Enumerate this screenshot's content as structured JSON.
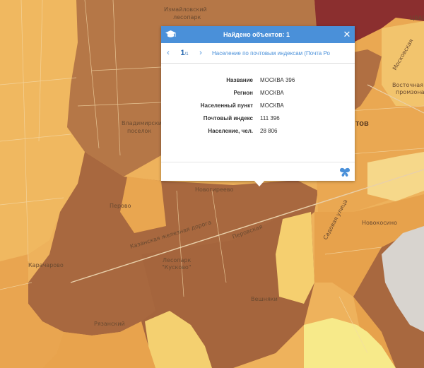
{
  "popup": {
    "title": "Найдено объектов: 1",
    "icon": "graduation-cap-icon",
    "close_icon": "close-icon",
    "nav_prev_icon": "chevron-left-icon",
    "nav_next_icon": "chevron-right-icon",
    "nav_current": "1",
    "nav_total": "/1",
    "layer_name": "Население по почтовым индексам (Почта Ро",
    "attributes": [
      {
        "key": "Название",
        "value": "МОСКВА 396"
      },
      {
        "key": "Регион",
        "value": "МОСКВА"
      },
      {
        "key": "Населенный пункт",
        "value": "МОСКВА"
      },
      {
        "key": "Почтовый индекс",
        "value": "111 396"
      },
      {
        "key": "Население, чел.",
        "value": "28 806"
      }
    ],
    "footer_icon": "butterfly-icon"
  },
  "map": {
    "labels": {
      "izmailovsky": "Измайловский",
      "lesopark_top": "лесопарк",
      "vladimirsky": "Владимирский",
      "poselok": "поселок",
      "novogireevo": "Новогиреево",
      "perovo": "Перово",
      "karacharovo": "Карачарово",
      "lesopark": "Лесопарк",
      "kuskovo": "\"Кусково\"",
      "ryazansky": "Рязанский",
      "veshnyaki": "Вешняки",
      "novokosino": "Новокосино",
      "vostochnaya": "Восточная",
      "promzona": "промзона",
      "cvao": "ЦВАО",
      "moscow_road": "Московская",
      "sadovaya": "Садовая улица",
      "kazanskaya": "Казанская железная дорога",
      "perovskaya": "Перовская",
      "tov": "тов"
    },
    "colors": {
      "dark_brown": "#a8683f",
      "brown": "#b77a4a",
      "orange": "#e8a54f",
      "light_orange": "#f0b860",
      "pale": "#f6d07a",
      "yellow": "#f7e98a",
      "maroon": "#8b2f2f",
      "gray": "#d8d4cf"
    }
  }
}
